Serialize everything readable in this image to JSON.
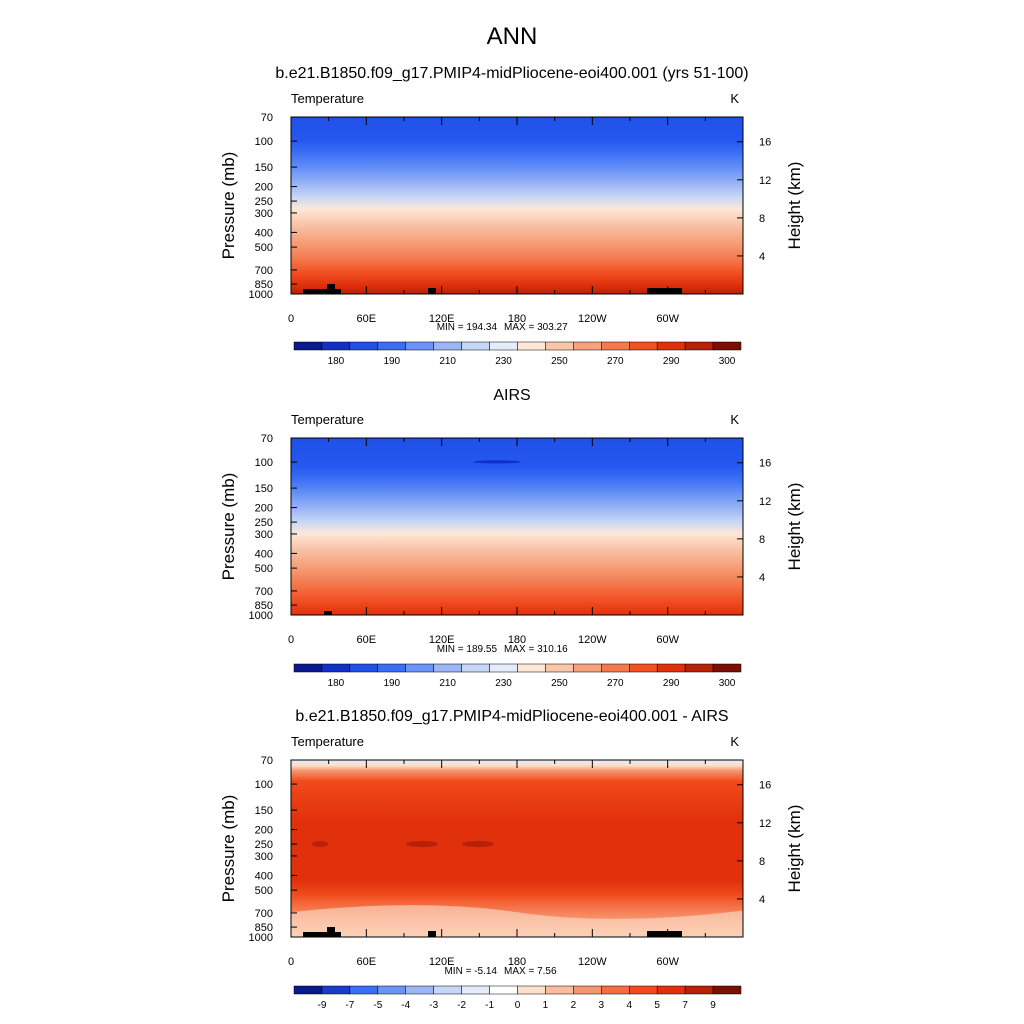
{
  "main_title": "ANN",
  "chart_data": [
    {
      "type": "heatmap",
      "title": "b.e21.B1850.f09_g17.PMIP4-midPliocene-eoi400.001 (yrs 51-100)",
      "variable_label": "Temperature",
      "units": "K",
      "ylabel": "Pressure (mb)",
      "ylabel_right": "Height (km)",
      "pressure_ticks": [
        "70",
        "100",
        "150",
        "200",
        "250",
        "300",
        "400",
        "500",
        "700",
        "850",
        "1000"
      ],
      "height_ticks": [
        "4",
        "8",
        "12",
        "16"
      ],
      "lon_ticks": [
        "0",
        "60E",
        "120E",
        "180",
        "120W",
        "60W"
      ],
      "min_label": "MIN = 194.34",
      "max_label": "MAX = 303.27",
      "colorbar_labels": [
        "180",
        "190",
        "210",
        "230",
        "250",
        "270",
        "290",
        "300"
      ]
    },
    {
      "type": "heatmap",
      "title": "AIRS",
      "variable_label": "Temperature",
      "units": "K",
      "ylabel": "Pressure (mb)",
      "ylabel_right": "Height (km)",
      "pressure_ticks": [
        "70",
        "100",
        "150",
        "200",
        "250",
        "300",
        "400",
        "500",
        "700",
        "850",
        "1000"
      ],
      "height_ticks": [
        "4",
        "8",
        "12",
        "16"
      ],
      "lon_ticks": [
        "0",
        "60E",
        "120E",
        "180",
        "120W",
        "60W"
      ],
      "min_label": "MIN = 189.55",
      "max_label": "MAX = 310.16",
      "colorbar_labels": [
        "180",
        "190",
        "210",
        "230",
        "250",
        "270",
        "290",
        "300"
      ]
    },
    {
      "type": "heatmap",
      "title": "b.e21.B1850.f09_g17.PMIP4-midPliocene-eoi400.001 - AIRS",
      "variable_label": "Temperature",
      "units": "K",
      "ylabel": "Pressure (mb)",
      "ylabel_right": "Height (km)",
      "pressure_ticks": [
        "70",
        "100",
        "150",
        "200",
        "250",
        "300",
        "400",
        "500",
        "700",
        "850",
        "1000"
      ],
      "height_ticks": [
        "4",
        "8",
        "12",
        "16"
      ],
      "lon_ticks": [
        "0",
        "60E",
        "120E",
        "180",
        "120W",
        "60W"
      ],
      "min_label": "MIN = -5.14",
      "max_label": "MAX =  7.56",
      "colorbar_labels": [
        "-9",
        "-7",
        "-5",
        "-4",
        "-3",
        "-2",
        "-1",
        "0",
        "1",
        "2",
        "3",
        "4",
        "5",
        "7",
        "9"
      ]
    }
  ],
  "colors": {
    "abs_scale": [
      "#0a1a8c",
      "#1230c8",
      "#2050e8",
      "#3a6ef5",
      "#6a94f7",
      "#9cb6f5",
      "#c5d6f7",
      "#e4ecfa",
      "#fde8d8",
      "#f9c6aa",
      "#f6a27c",
      "#f47a4e",
      "#f24f22",
      "#e0300c",
      "#b82008",
      "#7a0f04"
    ],
    "diff_scale": [
      "#0a1a8c",
      "#1a3cc8",
      "#3a6ef5",
      "#6a94f7",
      "#9cb6f5",
      "#c5d6f7",
      "#e4ecfa",
      "#ffffff",
      "#fde0cc",
      "#f9bc9c",
      "#f69670",
      "#f46c40",
      "#f24a1c",
      "#e0300c",
      "#b82008",
      "#7a0f04"
    ],
    "land": "#000000"
  }
}
